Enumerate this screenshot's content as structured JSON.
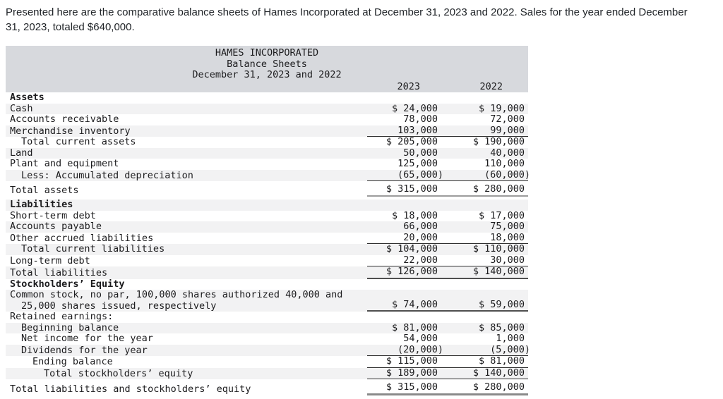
{
  "intro": "Presented here are the comparative balance sheets of Hames Incorporated at December 31, 2023 and 2022. Sales for the year ended December 31, 2023, totaled $640,000.",
  "colors": {
    "band_bg": "#d7d9dd",
    "row_stripe": "#f2f2f3",
    "text": "#1c1c1e",
    "intro_text": "#212529",
    "rule_thin": "#2d2d2d",
    "rule_thick": "#4f4f4f",
    "rule_gray": "#9c9c9c",
    "rule_grayheavy": "#8a8a8a"
  },
  "table": {
    "title_lines": [
      "HAMES INCORPORATED",
      "Balance Sheets",
      "December 31, 2023 and 2022"
    ],
    "columns": [
      "2023",
      "2022"
    ],
    "rows": [
      {
        "label": "Assets",
        "bold": true,
        "indent": 0,
        "v1": "",
        "v2": "",
        "shaded": false
      },
      {
        "label": "Cash",
        "indent": 0,
        "v1": "$ 24,000",
        "v2": "$ 19,000",
        "shaded": true
      },
      {
        "label": "Accounts receivable",
        "indent": 0,
        "v1": "78,000",
        "v2": "72,000",
        "shaded": false
      },
      {
        "label": "Merchandise inventory",
        "indent": 0,
        "v1": "103,000",
        "v2": "99,000",
        "shaded": true,
        "rule": "thin"
      },
      {
        "label": "Total current assets",
        "indent": 1,
        "v1": "$ 205,000",
        "v2": "$ 190,000",
        "shaded": false
      },
      {
        "label": "Land",
        "indent": 0,
        "v1": "50,000",
        "v2": "40,000",
        "shaded": true
      },
      {
        "label": "Plant and equipment",
        "indent": 0,
        "v1": "125,000",
        "v2": "110,000",
        "shaded": false
      },
      {
        "label": "Less: Accumulated depreciation",
        "indent": 1,
        "v1": "(65,000)",
        "v2": "(60,000)",
        "shaded": true,
        "rule": "thin",
        "neg": true
      },
      {
        "label": "Total assets",
        "indent": 0,
        "v1": "$ 315,000",
        "v2": "$ 280,000",
        "shaded": false,
        "rule": "gray",
        "tall": true
      },
      {
        "label": "Liabilities",
        "bold": true,
        "indent": 0,
        "v1": "",
        "v2": "",
        "shaded": true
      },
      {
        "label": "Short-term debt",
        "indent": 0,
        "v1": "$ 18,000",
        "v2": "$ 17,000",
        "shaded": false
      },
      {
        "label": "Accounts payable",
        "indent": 0,
        "v1": "66,000",
        "v2": "75,000",
        "shaded": true
      },
      {
        "label": "Other accrued liabilities",
        "indent": 0,
        "v1": "20,000",
        "v2": "18,000",
        "shaded": false,
        "rule": "thin"
      },
      {
        "label": "Total current liabilities",
        "indent": 1,
        "v1": "$ 104,000",
        "v2": "$ 110,000",
        "shaded": true
      },
      {
        "label": "Long-term debt",
        "indent": 0,
        "v1": "22,000",
        "v2": "30,000",
        "shaded": false,
        "rule": "thin"
      },
      {
        "label": "Total liabilities",
        "indent": 0,
        "v1": "$ 126,000",
        "v2": "$ 140,000",
        "shaded": true,
        "rule": "thick"
      },
      {
        "label": "Stockholders’ Equity",
        "bold": true,
        "indent": 0,
        "v1": "",
        "v2": "",
        "shaded": false
      },
      {
        "label": "Common stock, no par, 100,000 shares authorized 40,000 and",
        "label2": "25,000 shares issued, respectively",
        "indent": 0,
        "v1": "$ 74,000",
        "v2": "$ 59,000",
        "shaded": true,
        "rule": "thick"
      },
      {
        "label": "Retained earnings:",
        "indent": 0,
        "v1": "",
        "v2": "",
        "shaded": false
      },
      {
        "label": "Beginning balance",
        "indent": 1,
        "v1": "$ 81,000",
        "v2": "$ 85,000",
        "shaded": true
      },
      {
        "label": "Net income for the year",
        "indent": 1,
        "v1": "54,000",
        "v2": "1,000",
        "shaded": false
      },
      {
        "label": "Dividends for the year",
        "indent": 1,
        "v1": "(20,000)",
        "v2": "(5,000)",
        "shaded": true,
        "rule": "thin",
        "neg": true
      },
      {
        "label": "Ending balance",
        "indent": 2,
        "v1": "$ 115,000",
        "v2": "$ 81,000",
        "shaded": false,
        "rule": "thin"
      },
      {
        "label": "Total stockholders’ equity",
        "indent": 3,
        "v1": "$ 189,000",
        "v2": "$ 140,000",
        "shaded": true,
        "rule": "thin"
      },
      {
        "label": "Total liabilities and stockholders’ equity",
        "indent": 0,
        "v1": "$ 315,000",
        "v2": "$ 280,000",
        "shaded": false,
        "rule": "grayheavy",
        "tall": true
      }
    ]
  }
}
